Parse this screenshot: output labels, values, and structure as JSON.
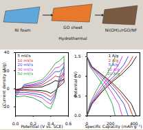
{
  "diagram": {
    "labels": [
      "Ni foam",
      "GO sheet",
      "Ni(OH)₂/rGO/NF",
      "Hydrothermal"
    ]
  },
  "chart_data": [
    {
      "type": "line",
      "x_label": "Potential (V vs. SCE)",
      "y_label": "Current density (A/g)",
      "xlim": [
        0,
        0.6
      ],
      "xticks": [
        {
          "value": 0,
          "label": "0.0"
        },
        0.2,
        0.4,
        0.6
      ],
      "ylim": [
        -30,
        40
      ],
      "yticks": [
        -20,
        0,
        20,
        40
      ],
      "x": [
        0,
        0.1,
        0.2,
        0.3,
        0.35,
        0.4,
        0.45,
        0.5,
        0.55,
        0.55,
        0.5,
        0.45,
        0.4,
        0.35,
        0.3,
        0.2,
        0.1,
        0
      ],
      "legend": "top-left",
      "series": [
        {
          "name": "5 mV/s",
          "color": "#000000",
          "values": [
            -1,
            1,
            1.5,
            2,
            4,
            6,
            9,
            8,
            11,
            7,
            3,
            -2,
            -5,
            -3,
            -2,
            -1.5,
            -1,
            -1
          ]
        },
        {
          "name": "10 mV/s",
          "color": "#e41a1c",
          "values": [
            -2,
            2,
            3,
            4,
            7,
            10,
            14,
            13,
            17,
            11,
            5,
            -4,
            -9,
            -6,
            -4,
            -3,
            -2,
            -2
          ]
        },
        {
          "name": "20 mV/s",
          "color": "#1f3fd6",
          "values": [
            -4,
            3,
            4,
            6,
            10,
            14,
            19,
            19,
            24,
            16,
            8,
            -6,
            -13,
            -10,
            -7,
            -5,
            -4,
            -4
          ]
        },
        {
          "name": "30 mV/s",
          "color": "#d62ad6",
          "values": [
            -6,
            4,
            5,
            8,
            12,
            17,
            23,
            24,
            29,
            20,
            10,
            -8,
            -17,
            -14,
            -10,
            -7,
            -6,
            -6
          ]
        },
        {
          "name": "50 mV/s",
          "color": "#1a9e3a",
          "values": [
            -9,
            5,
            7,
            10,
            15,
            21,
            28,
            31,
            36,
            26,
            14,
            -10,
            -22,
            -20,
            -15,
            -10,
            -8,
            -9
          ]
        }
      ]
    },
    {
      "type": "line",
      "x_label": "Specific Capacity (mAh g⁻¹)",
      "y_label": "Potential (V)",
      "xlim": [
        0,
        450
      ],
      "xticks": [
        0,
        200,
        400
      ],
      "ylim": [
        0,
        1.6
      ],
      "yticks": [
        {
          "value": 0,
          "label": "0.0"
        },
        0.5,
        {
          "value": 1,
          "label": "1.0"
        },
        1.5
      ],
      "legend": "top",
      "series": [
        {
          "name": "1 A/g",
          "color": "#000000",
          "x": [
            0,
            42,
            126,
            210,
            294,
            378,
            420
          ],
          "discharge": [
            1.5,
            1.25,
            1.05,
            0.85,
            0.6,
            0.3,
            0
          ],
          "charge": [
            0,
            0.3,
            0.6,
            0.85,
            1.05,
            1.3,
            1.5
          ]
        },
        {
          "name": "2 A/g",
          "color": "#e41a1c",
          "x": [
            0,
            39,
            117,
            195,
            273,
            351,
            390
          ],
          "discharge": [
            1.5,
            1.25,
            1.05,
            0.85,
            0.6,
            0.3,
            0
          ],
          "charge": [
            0,
            0.3,
            0.6,
            0.85,
            1.05,
            1.3,
            1.5
          ]
        },
        {
          "name": "5 A/g",
          "color": "#1f3fd6",
          "x": [
            0,
            35,
            105,
            175,
            245,
            315,
            350
          ],
          "discharge": [
            1.5,
            1.25,
            1.05,
            0.85,
            0.6,
            0.3,
            0
          ],
          "charge": [
            0,
            0.3,
            0.6,
            0.85,
            1.05,
            1.3,
            1.5
          ]
        },
        {
          "name": "10 A/g",
          "color": "#d62ad6",
          "x": [
            0,
            30,
            90,
            150,
            210,
            270,
            300
          ],
          "discharge": [
            1.5,
            1.25,
            1.05,
            0.85,
            0.6,
            0.3,
            0
          ],
          "charge": [
            0,
            0.3,
            0.6,
            0.85,
            1.05,
            1.3,
            1.5
          ]
        },
        {
          "name": "20 A/g",
          "color": "#1a9e3a",
          "x": [
            0,
            24,
            72,
            120,
            168,
            216,
            240
          ],
          "discharge": [
            1.5,
            1.25,
            1.05,
            0.85,
            0.6,
            0.3,
            0
          ],
          "charge": [
            0,
            0.3,
            0.6,
            0.85,
            1.05,
            1.3,
            1.5
          ]
        }
      ]
    }
  ]
}
